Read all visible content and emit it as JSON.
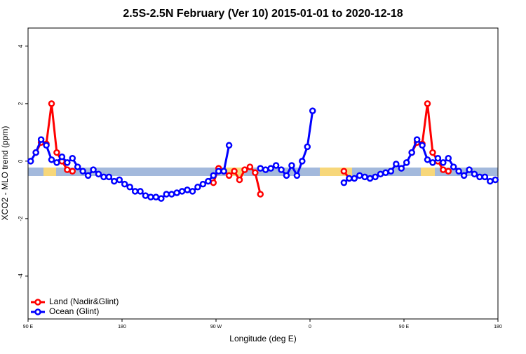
{
  "chart_data": {
    "type": "line",
    "title": "2.5S-2.5N February (Ver 10)   2015-01-01 to 2020-12-18",
    "x_label": "Longitude (deg E)",
    "y_label": "XCO2 - MLO trend (ppm)",
    "x": [
      92.5,
      97.5,
      102.5,
      107.5,
      112.5,
      117.5,
      122.5,
      127.5,
      132.5,
      137.5,
      142.5,
      147.5,
      152.5,
      157.5,
      162.5,
      167.5,
      172.5,
      177.5,
      182.5,
      187.5,
      192.5,
      197.5,
      202.5,
      207.5,
      212.5,
      217.5,
      222.5,
      227.5,
      232.5,
      237.5,
      242.5,
      247.5,
      252.5,
      257.5,
      262.5,
      267.5,
      272.5,
      277.5,
      282.5,
      287.5,
      292.5,
      297.5,
      302.5,
      307.5,
      312.5,
      317.5,
      322.5,
      327.5,
      332.5,
      337.5,
      342.5,
      347.5,
      352.5,
      357.5,
      362.5,
      367.5,
      372.5,
      377.5,
      382.5,
      387.5,
      392.5,
      397.5,
      402.5,
      407.5,
      412.5,
      417.5,
      422.5,
      427.5,
      432.5,
      437.5,
      442.5,
      447.5,
      452.5,
      457.5,
      462.5,
      467.5,
      472.5,
      477.5,
      482.5,
      487.5,
      492.5,
      497.5,
      502.5,
      507.5,
      512.5,
      517.5,
      522.5,
      527.5,
      532.5,
      537.5
    ],
    "series": [
      {
        "name": "Land (Nadir&Glint)",
        "color": "#ff0000",
        "values": [
          null,
          0.3,
          0.65,
          0.6,
          2.0,
          0.3,
          0,
          -0.3,
          -0.35,
          null,
          null,
          null,
          null,
          null,
          null,
          null,
          null,
          null,
          null,
          null,
          null,
          null,
          null,
          null,
          null,
          null,
          null,
          null,
          null,
          null,
          null,
          null,
          null,
          null,
          null,
          -0.75,
          -0.25,
          -0.35,
          -0.5,
          -0.35,
          -0.65,
          -0.3,
          -0.2,
          -0.4,
          -1.15,
          null,
          null,
          null,
          null,
          null,
          null,
          null,
          null,
          null,
          null,
          null,
          null,
          null,
          null,
          null,
          -0.35,
          -0.6,
          null,
          null,
          null,
          null,
          null,
          null,
          null,
          null,
          null,
          null,
          null,
          0.3,
          0.65,
          0.6,
          2.0,
          0.3,
          0,
          -0.3,
          -0.35,
          null,
          null,
          null,
          null,
          null,
          null,
          null,
          null,
          null
        ]
      },
      {
        "name": "Ocean (Glint)",
        "color": "#0000ff",
        "values": [
          0,
          0.3,
          0.75,
          0.55,
          0.05,
          -0.05,
          0.15,
          -0.05,
          0.1,
          -0.2,
          -0.35,
          -0.5,
          -0.3,
          -0.45,
          -0.55,
          -0.55,
          -0.7,
          -0.65,
          -0.8,
          -0.9,
          -1.05,
          -1.05,
          -1.2,
          -1.25,
          -1.25,
          -1.3,
          -1.15,
          -1.15,
          -1.1,
          -1.05,
          -1.0,
          -1.05,
          -0.9,
          -0.8,
          -0.7,
          -0.5,
          -0.35,
          -0.35,
          0.55,
          null,
          null,
          null,
          null,
          null,
          -0.25,
          -0.3,
          -0.25,
          -0.15,
          -0.3,
          -0.5,
          -0.15,
          -0.5,
          0,
          0.5,
          1.75,
          null,
          null,
          null,
          null,
          null,
          -0.75,
          -0.6,
          -0.6,
          -0.5,
          -0.55,
          -0.6,
          -0.55,
          -0.45,
          -0.4,
          -0.35,
          -0.1,
          -0.25,
          -0.05,
          0.3,
          0.75,
          0.55,
          0.05,
          -0.05,
          0.1,
          -0.05,
          0.1,
          -0.2,
          -0.35,
          -0.5,
          -0.3,
          -0.45,
          -0.55,
          -0.55,
          -0.7,
          -0.65
        ]
      }
    ],
    "xlim": [
      90,
      540
    ],
    "xticks": [
      {
        "value": 90,
        "label": "90 E"
      },
      {
        "value": 180,
        "label": "180"
      },
      {
        "value": 270,
        "label": "90 W"
      },
      {
        "value": 360,
        "label": "0"
      },
      {
        "value": 450,
        "label": "90 E"
      },
      {
        "value": 540,
        "label": "180"
      }
    ],
    "ylim": [
      -5.49,
      4.63
    ],
    "yticks": [
      -4,
      -2,
      0,
      2,
      4
    ],
    "grid": false,
    "legend": "bottom-left"
  }
}
